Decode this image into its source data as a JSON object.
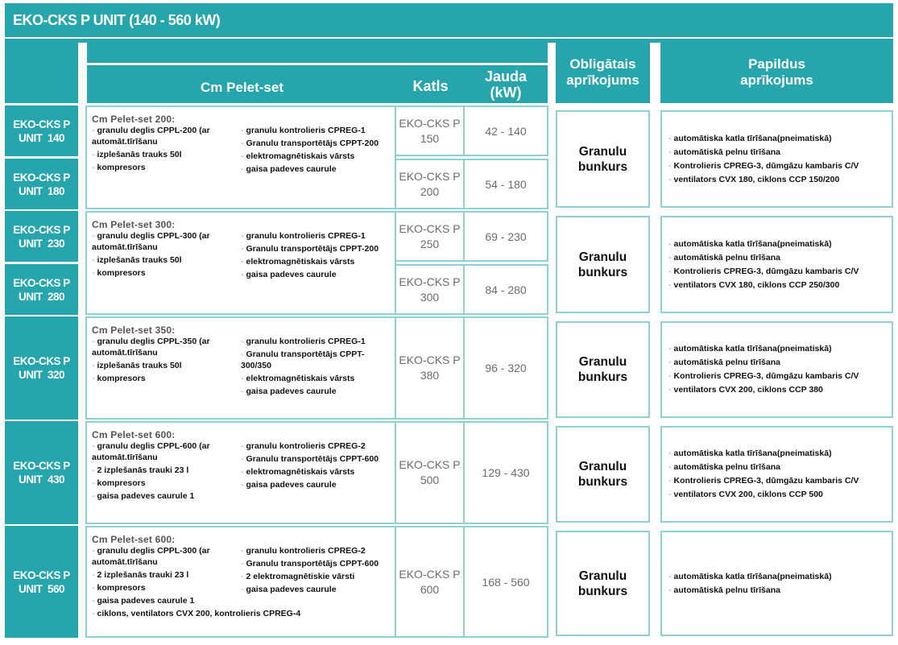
{
  "title": "EKO-CKS P UNIT (140 - 560 kW)",
  "colors": {
    "accent": "#27a5ad",
    "cell_border": "#8fd0d4"
  },
  "headers": {
    "set": "Cm Pelet-set",
    "katls": "Katls",
    "jauda": [
      "Jauda",
      "(kW)"
    ],
    "obligatais": [
      "Obligātais",
      "aprīkojums"
    ],
    "papildus": [
      "Papildus",
      "aprīkojums"
    ]
  },
  "groups": [
    {
      "units": [
        {
          "label": [
            "EKO-CKS P",
            "UNIT  140"
          ],
          "katls": [
            "EKO-CKS P",
            "150"
          ],
          "jauda": "42 - 140"
        },
        {
          "label": [
            "EKO-CKS P",
            "UNIT  180"
          ],
          "katls": [
            "EKO-CKS P",
            "200"
          ],
          "jauda": "54 - 180"
        }
      ],
      "set_title": "Cm Pelet-set 200:",
      "left_items": [
        "granulu deglis CPPL-200 (ar automāt.tīrīšanu",
        "izplešanās trauks 50l",
        "kompresors"
      ],
      "right_items": [
        "granulu kontrolieris CPREG-1",
        "Granulu transportētājs CPPT-200",
        "elektromagnētiskais vārsts",
        "gaisa padeves caurule"
      ],
      "bottom_item": "",
      "obligatais": [
        "Granulu",
        "bunkurs"
      ],
      "papildus": [
        "automātiska katla tīrīšana(pneimatiskā)",
        "automātiskā pelnu tīrīšana",
        "Kontrolieris CPREG-3, dūmgāzu kambaris C/V",
        "ventilators CVX 180, ciklons CCP 150/200"
      ]
    },
    {
      "units": [
        {
          "label": [
            "EKO-CKS P",
            "UNIT  230"
          ],
          "katls": [
            "EKO-CKS P",
            "250"
          ],
          "jauda": "69 - 230"
        },
        {
          "label": [
            "EKO-CKS P",
            "UNIT  280"
          ],
          "katls": [
            "EKO-CKS P",
            "300"
          ],
          "jauda": "84 - 280"
        }
      ],
      "set_title": "Cm Pelet-set 300:",
      "left_items": [
        "granulu deglis CPPL-300 (ar automāt.tīrīšanu",
        "izplešanās trauks 50l",
        "kompresors"
      ],
      "right_items": [
        "granulu kontrolieris CPREG-1",
        "Granulu transportētājs CPPT-200",
        "elektromagnētiskais vārsts",
        "gaisa padeves caurule"
      ],
      "bottom_item": "",
      "obligatais": [
        "Granulu",
        "bunkurs"
      ],
      "papildus": [
        "automātiska katla tīrīšana(pneimatiskā)",
        "automātiskā pelnu tīrīšana",
        "Kontrolieris CPREG-3, dūmgāzu kambaris C/V",
        "ventilators CVX 180, ciklons CCP 250/300"
      ]
    },
    {
      "units": [
        {
          "label": [
            "EKO-CKS P",
            "UNIT  320"
          ],
          "katls": [
            "EKO-CKS P",
            "380"
          ],
          "jauda": "96 - 320"
        }
      ],
      "set_title": "Cm Pelet-set 350:",
      "left_items": [
        "granulu deglis CPPL-350 (ar automāt.tīrīšanu",
        "izplešanās trauks 50l",
        "kompresors"
      ],
      "right_items": [
        "granulu kontrolieris CPREG-1",
        "Granulu transportētājs CPPT-300/350",
        "elektromagnētiskais vārsts",
        "gaisa padeves caurule"
      ],
      "bottom_item": "",
      "obligatais": [
        "Granulu",
        "bunkurs"
      ],
      "papildus": [
        "automātiska katla tīrīšana(pneimatiskā)",
        "automātiskā pelnu tīrīšana",
        "Kontrolieris CPREG-3, dūmgāzu kambaris C/V",
        "ventilators CVX 200, ciklons CCP 380"
      ]
    },
    {
      "units": [
        {
          "label": [
            "EKO-CKS P",
            "UNIT  430"
          ],
          "katls": [
            "EKO-CKS P",
            "500"
          ],
          "jauda": "129 - 430"
        }
      ],
      "set_title": "Cm Pelet-set 600:",
      "left_items": [
        "granulu deglis CPPL-600 (ar automāt.tīrīšanu",
        "2 izplešanās trauki 23 l",
        "kompresors",
        "gaisa padeves caurule 1"
      ],
      "right_items": [
        "granulu kontrolieris CPREG-2",
        "Granulu transportētājs CPPT-600",
        "elektromagnētiskais vārsts",
        "gaisa padeves caurule"
      ],
      "bottom_item": "",
      "obligatais": [
        "Granulu",
        "bunkurs"
      ],
      "papildus": [
        "automātiska katla tīrīšana(pneimatiskā)",
        "automātiska pelnu tīrīšana",
        "Kontrolieris CPREG-3, dūmgāzu kambaris C/V",
        "ventilators CVX 200, ciklons CCP 500"
      ]
    },
    {
      "units": [
        {
          "label": [
            "EKO-CKS P",
            "UNIT  560"
          ],
          "katls": [
            "EKO-CKS P",
            "600"
          ],
          "jauda": "168 - 560"
        }
      ],
      "set_title": "Cm Pelet-set 600:",
      "left_items": [
        "granulu deglis CPPL-300 (ar automāt.tīrīšanu",
        "2 izplešanās trauki 23 l",
        "kompresors",
        "gaisa padeves caurule 1"
      ],
      "right_items": [
        "granulu kontrolieris CPREG-2",
        "Granulu transportētājs CPPT-600",
        "2 elektromagnētiskie vārsti",
        "gaisa padeves caurule"
      ],
      "bottom_item": "ciklons, ventilators CVX 200, kontrolieris CPREG-4",
      "obligatais": [
        "Granulu",
        "bunkurs"
      ],
      "papildus": [
        "automātiska katla tīrīšana(pneimatiskā)",
        "automātiskā pelnu tīrīšana"
      ]
    }
  ]
}
